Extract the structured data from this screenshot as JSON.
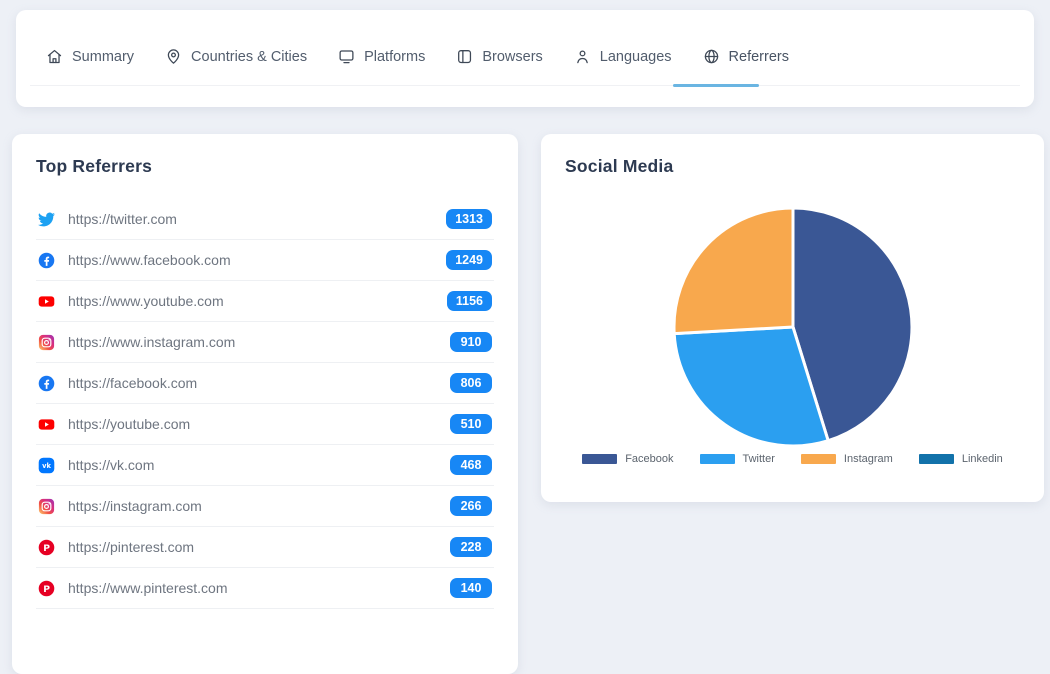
{
  "page": {
    "background": "#edf0f6"
  },
  "header": {
    "active_underline_color": "#6ab5e2",
    "tabs": [
      {
        "label": "Summary",
        "icon": "home",
        "active": false
      },
      {
        "label": "Countries & Cities",
        "icon": "map-pin",
        "active": false
      },
      {
        "label": "Platforms",
        "icon": "monitor",
        "active": false
      },
      {
        "label": "Browsers",
        "icon": "browser-window",
        "active": false
      },
      {
        "label": "Languages",
        "icon": "person",
        "active": false
      },
      {
        "label": "Referrers",
        "icon": "globe",
        "active": true
      }
    ]
  },
  "top_referrers": {
    "title": "Top Referrers",
    "badge_color": "#1787f5",
    "rows": [
      {
        "icon": "twitter",
        "url": "https://twitter.com",
        "count": "1313"
      },
      {
        "icon": "facebook",
        "url": "https://www.facebook.com",
        "count": "1249"
      },
      {
        "icon": "youtube",
        "url": "https://www.youtube.com",
        "count": "1156"
      },
      {
        "icon": "instagram",
        "url": "https://www.instagram.com",
        "count": "910"
      },
      {
        "icon": "facebook",
        "url": "https://facebook.com",
        "count": "806"
      },
      {
        "icon": "youtube",
        "url": "https://youtube.com",
        "count": "510"
      },
      {
        "icon": "vk",
        "url": "https://vk.com",
        "count": "468"
      },
      {
        "icon": "instagram",
        "url": "https://instagram.com",
        "count": "266"
      },
      {
        "icon": "pinterest",
        "url": "https://pinterest.com",
        "count": "228"
      },
      {
        "icon": "pinterest",
        "url": "https://www.pinterest.com",
        "count": "140"
      }
    ]
  },
  "social_media": {
    "title": "Social Media"
  },
  "chart_data": {
    "type": "pie",
    "title": "Social Media",
    "labels": [
      "Facebook",
      "Twitter",
      "Instagram",
      "Linkedin"
    ],
    "values": [
      2055,
      1313,
      1176,
      0
    ],
    "percentages": [
      45.2,
      28.9,
      25.9,
      0
    ],
    "colors": [
      "#3a5795",
      "#2b9ff0",
      "#f8a84d",
      "#1272aa"
    ],
    "slice_border_color": "#ffffff",
    "legend_position": "bottom",
    "start_angle_deg": 0,
    "direction": "clockwise"
  }
}
